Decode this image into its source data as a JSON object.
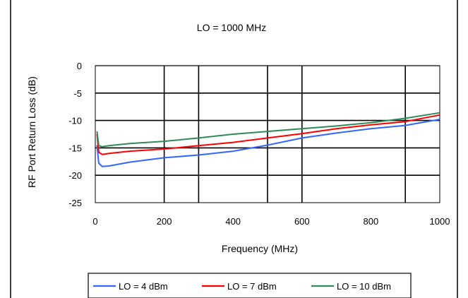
{
  "chart_data": {
    "type": "line",
    "title": "LO = 1000 MHz",
    "xlabel": "Frequency (MHz)",
    "ylabel": "RF Port Return Loss (dB)",
    "xlim": [
      0,
      1000
    ],
    "ylim": [
      -25,
      0
    ],
    "xticks": [
      0,
      200,
      400,
      600,
      800,
      1000
    ],
    "xtick_labels": [
      "0",
      "200",
      "400",
      "600",
      "800",
      "1000"
    ],
    "yticks": [
      0,
      -5,
      -10,
      -15,
      -20,
      -25
    ],
    "ytick_labels": [
      "0",
      "-5",
      "-10",
      "-15",
      "-20",
      "-25"
    ],
    "x_grid_lines": [
      200,
      300,
      500,
      600,
      900
    ],
    "grid": true,
    "legend_position": "bottom",
    "series": [
      {
        "name": "LO = 4 dBm",
        "color": "#3366ff",
        "x": [
          5,
          10,
          20,
          40,
          100,
          200,
          300,
          400,
          500,
          600,
          700,
          800,
          900,
          1000
        ],
        "y": [
          -14.5,
          -17.8,
          -18.4,
          -18.3,
          -17.6,
          -16.8,
          -16.3,
          -15.6,
          -14.5,
          -13.2,
          -12.3,
          -11.5,
          -10.9,
          -9.8
        ]
      },
      {
        "name": "LO = 7 dBm",
        "color": "#ff0000",
        "x": [
          5,
          10,
          20,
          40,
          100,
          200,
          300,
          400,
          500,
          600,
          700,
          800,
          900,
          1000
        ],
        "y": [
          -12.5,
          -15.8,
          -16.2,
          -16.0,
          -15.6,
          -15.2,
          -14.6,
          -14.0,
          -13.2,
          -12.4,
          -11.5,
          -10.8,
          -10.2,
          -9.0
        ]
      },
      {
        "name": "LO = 10 dBm",
        "color": "#2e8b57",
        "x": [
          5,
          10,
          20,
          40,
          100,
          200,
          300,
          400,
          500,
          600,
          700,
          800,
          900,
          1000
        ],
        "y": [
          -12.0,
          -14.6,
          -14.8,
          -14.6,
          -14.2,
          -13.8,
          -13.2,
          -12.5,
          -12.0,
          -11.5,
          -11.0,
          -10.4,
          -9.6,
          -8.6
        ]
      }
    ]
  }
}
